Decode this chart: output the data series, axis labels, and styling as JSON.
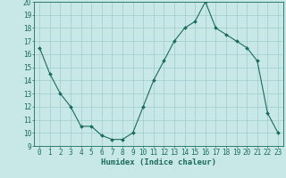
{
  "x": [
    0,
    1,
    2,
    3,
    4,
    5,
    6,
    7,
    8,
    9,
    10,
    11,
    12,
    13,
    14,
    15,
    16,
    17,
    18,
    19,
    20,
    21,
    22,
    23
  ],
  "y": [
    16.5,
    14.5,
    13.0,
    12.0,
    10.5,
    10.5,
    9.8,
    9.5,
    9.5,
    10.0,
    12.0,
    14.0,
    15.5,
    17.0,
    18.0,
    18.5,
    20.0,
    18.0,
    17.5,
    17.0,
    16.5,
    15.5,
    11.5,
    10.0
  ],
  "line_color": "#1a6b5a",
  "marker": "D",
  "marker_size": 2.0,
  "bg_color": "#c8e8e8",
  "grid_color": "#a0cccc",
  "xlabel": "Humidex (Indice chaleur)",
  "xlim": [
    -0.5,
    23.5
  ],
  "ylim": [
    9,
    20
  ],
  "yticks": [
    9,
    10,
    11,
    12,
    13,
    14,
    15,
    16,
    17,
    18,
    19,
    20
  ],
  "xticks": [
    0,
    1,
    2,
    3,
    4,
    5,
    6,
    7,
    8,
    9,
    10,
    11,
    12,
    13,
    14,
    15,
    16,
    17,
    18,
    19,
    20,
    21,
    22,
    23
  ],
  "axis_color": "#1a6b5a",
  "label_fontsize": 6.5,
  "tick_fontsize": 5.5
}
